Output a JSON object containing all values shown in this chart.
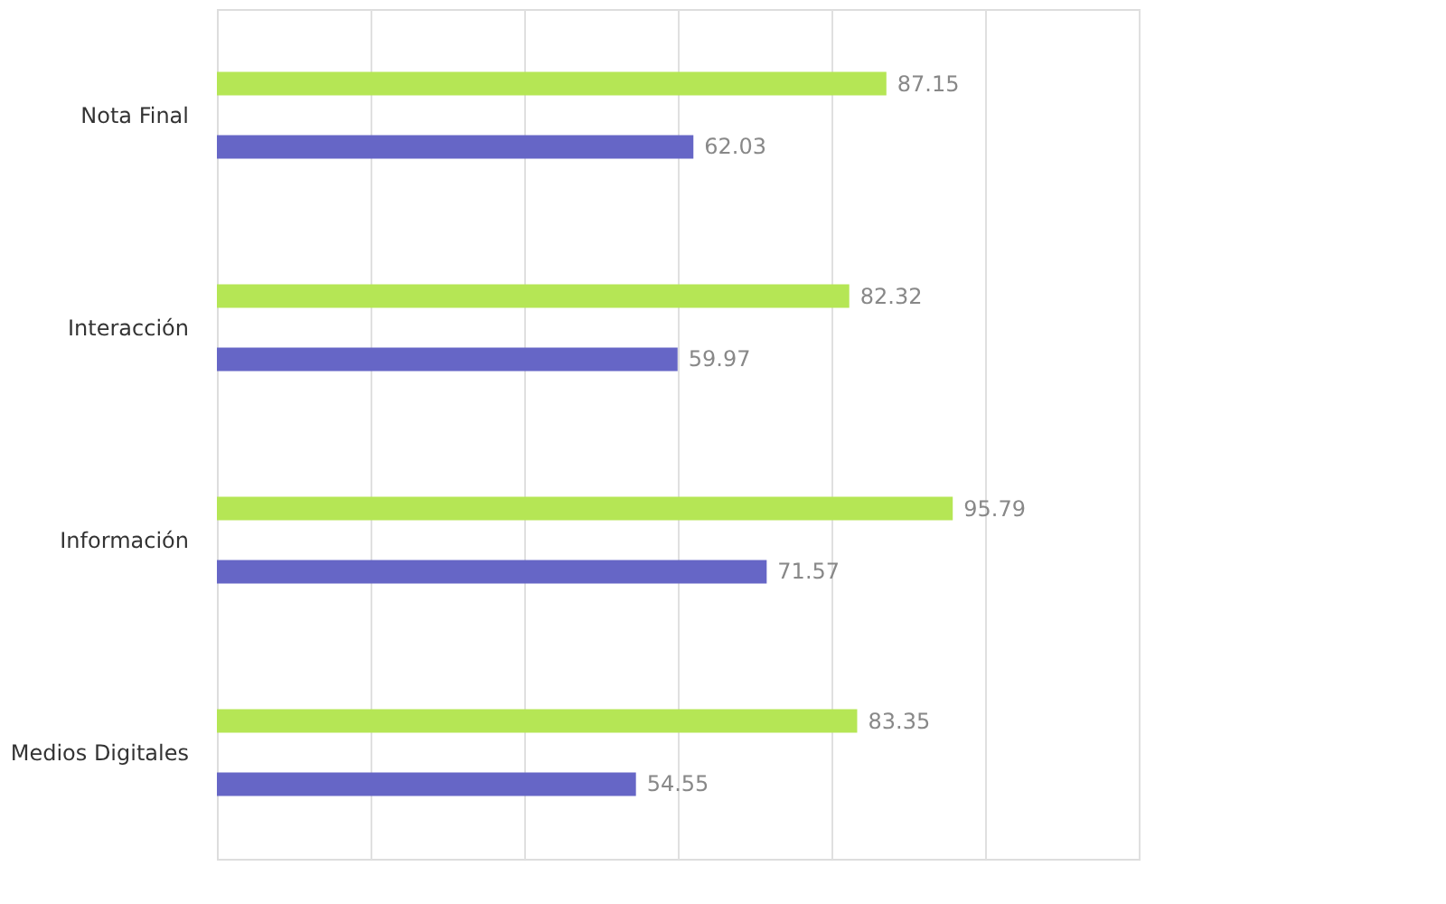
{
  "chart_data": {
    "type": "bar",
    "orientation": "horizontal",
    "categories": [
      "Nota Final",
      "Interacción",
      "Información",
      "Medios Digitales"
    ],
    "series": [
      {
        "color": "#b5e655",
        "values": [
          87.15,
          82.32,
          95.79,
          83.35
        ]
      },
      {
        "color": "#6666c6",
        "values": [
          62.03,
          59.97,
          71.57,
          54.55
        ]
      }
    ],
    "xlim": [
      0,
      120
    ],
    "xticks": [
      {
        "value": 0,
        "label": null
      },
      {
        "value": 20,
        "label": null
      },
      {
        "value": 40,
        "label": null
      },
      {
        "value": 60,
        "label": null
      },
      {
        "value": 80,
        "label": null
      },
      {
        "value": 100,
        "label": null
      },
      {
        "value": 120,
        "label": null
      }
    ],
    "grid": "x",
    "tick_labels": "y",
    "data_labels": true
  }
}
